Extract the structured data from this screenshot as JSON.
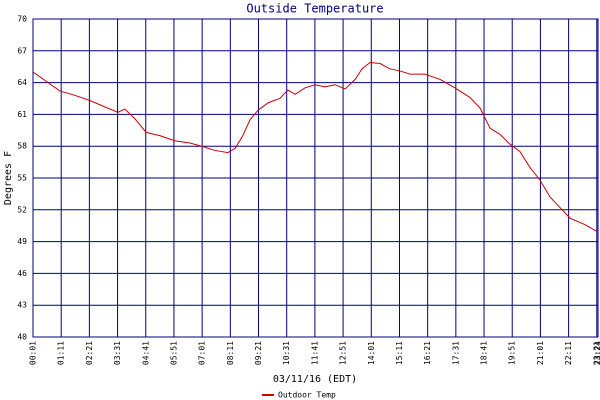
{
  "chart_data": {
    "type": "line",
    "title": "Outside Temperature",
    "x_label": "03/11/16 (EDT)",
    "y_label": "Degrees F",
    "x": [
      1,
      31,
      68,
      105,
      143,
      180,
      212,
      229,
      254,
      282,
      316,
      354,
      391,
      428,
      453,
      485,
      503,
      522,
      540,
      560,
      585,
      614,
      634,
      652,
      676,
      701,
      726,
      751,
      776,
      801,
      818,
      838,
      863,
      887,
      912,
      937,
      974,
      1012,
      1049,
      1086,
      1111,
      1136,
      1161,
      1185,
      1210,
      1235,
      1260,
      1285,
      1310,
      1335,
      1372,
      1404
    ],
    "series": [
      {
        "name": "Outdoor Temp",
        "color": "#cc0000",
        "values": [
          65.0,
          64.2,
          63.2,
          62.8,
          62.3,
          61.7,
          61.2,
          61.5,
          60.6,
          59.3,
          59.0,
          58.5,
          58.3,
          57.9,
          57.6,
          57.4,
          57.8,
          59.0,
          60.5,
          61.4,
          62.1,
          62.5,
          63.3,
          62.9,
          63.5,
          63.8,
          63.6,
          63.8,
          63.4,
          64.3,
          65.3,
          65.9,
          65.8,
          65.3,
          65.1,
          64.8,
          64.8,
          64.3,
          63.5,
          62.6,
          61.6,
          59.7,
          59.1,
          58.2,
          57.5,
          56.0,
          54.8,
          53.2,
          52.2,
          51.2,
          50.6,
          49.9
        ]
      }
    ],
    "xlim": [
      1,
      1404
    ],
    "xticks": [
      {
        "value": 1,
        "label": "00:01"
      },
      {
        "value": 71,
        "label": "01:11"
      },
      {
        "value": 141,
        "label": "02:21"
      },
      {
        "value": 211,
        "label": "03:31"
      },
      {
        "value": 281,
        "label": "04:41"
      },
      {
        "value": 351,
        "label": "05:51"
      },
      {
        "value": 421,
        "label": "07:01"
      },
      {
        "value": 491,
        "label": "08:11"
      },
      {
        "value": 561,
        "label": "09:21"
      },
      {
        "value": 631,
        "label": "10:31"
      },
      {
        "value": 701,
        "label": "11:41"
      },
      {
        "value": 771,
        "label": "12:51"
      },
      {
        "value": 841,
        "label": "14:01"
      },
      {
        "value": 911,
        "label": "15:11"
      },
      {
        "value": 981,
        "label": "16:21"
      },
      {
        "value": 1051,
        "label": "17:31"
      },
      {
        "value": 1121,
        "label": "18:41"
      },
      {
        "value": 1191,
        "label": "19:51"
      },
      {
        "value": 1261,
        "label": "21:01"
      },
      {
        "value": 1331,
        "label": "22:11"
      },
      {
        "value": 1401,
        "label": "23:21"
      },
      {
        "value": 1404,
        "label": "23:24"
      }
    ],
    "ylim": [
      40,
      70
    ],
    "yticks": [
      40,
      43,
      46,
      49,
      52,
      55,
      58,
      61,
      64,
      67,
      70
    ],
    "grid": true,
    "grid_color": "#000080"
  }
}
